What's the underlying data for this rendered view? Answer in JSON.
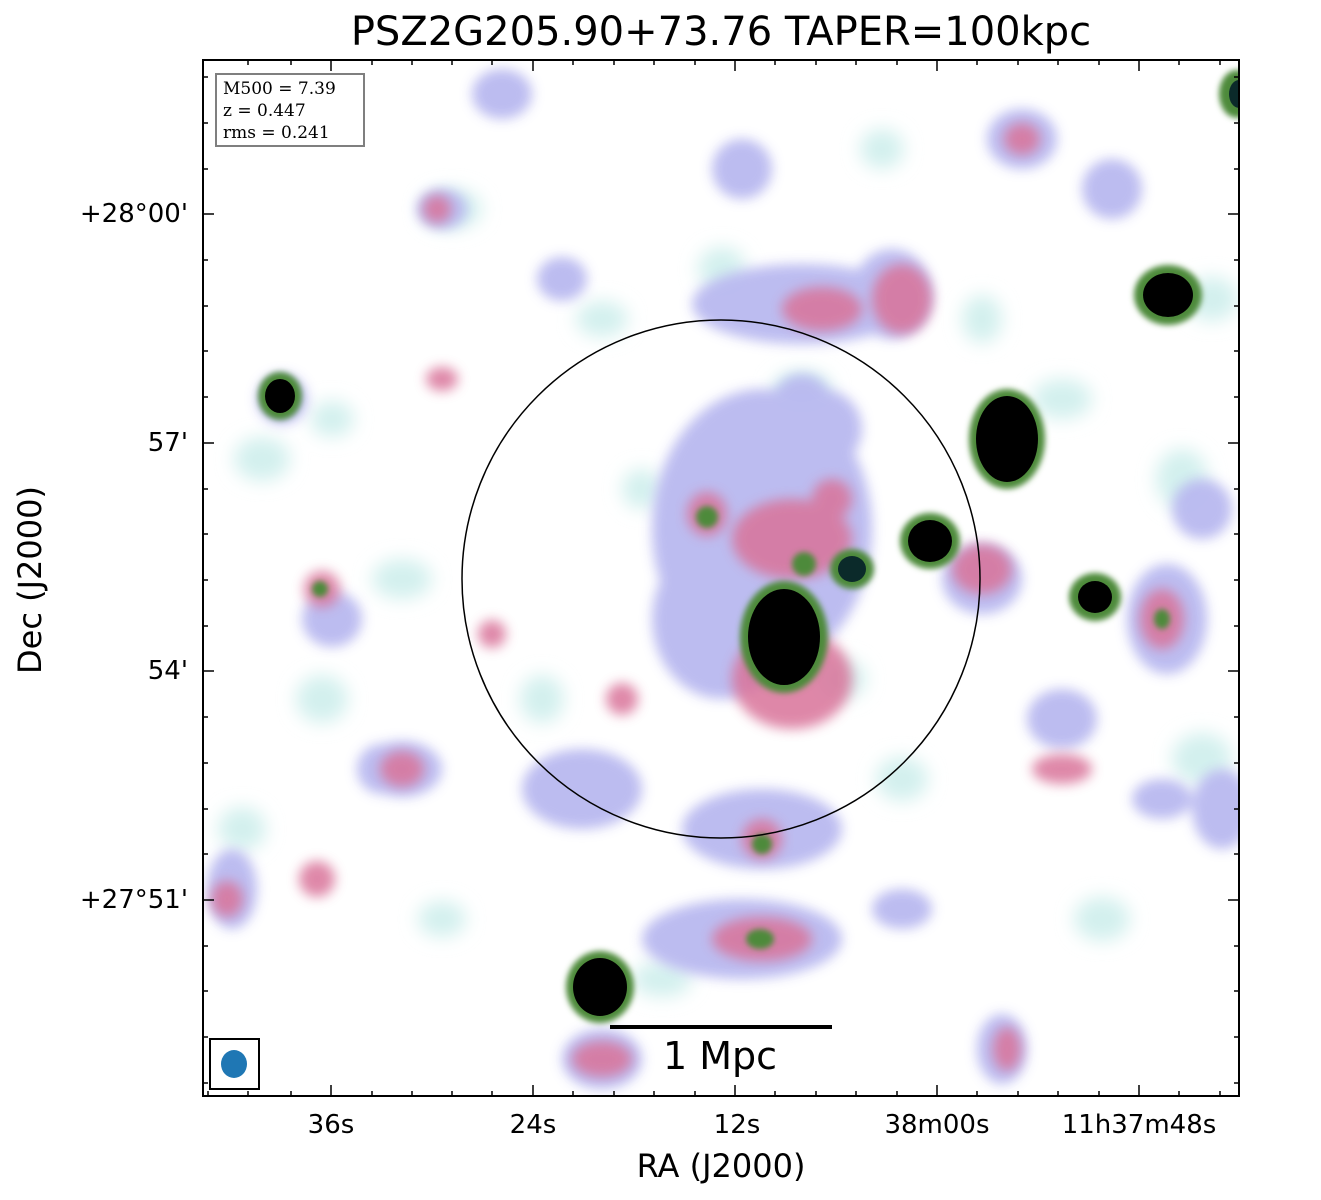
{
  "title": "PSZ2G205.90+73.76 TAPER=100kpc",
  "axes": {
    "xlabel": "RA (J2000)",
    "ylabel": "Dec (J2000)",
    "x_ticks": [
      "36s",
      "24s",
      "12s",
      "38m00s",
      "11h37m48s"
    ],
    "y_ticks": [
      "+28°00'",
      "57'",
      "54'",
      "+27°51'"
    ]
  },
  "info": {
    "mass": "M500 = 7.39",
    "redshift": "z = 0.447",
    "rms": "rms = 0.241"
  },
  "scalebar": {
    "label": "1 Mpc"
  },
  "colors": {
    "cmap_low": "#d3f0ee",
    "cmap_mid_blue": "#b9b9f0",
    "cmap_mid_pink": "#d9739a",
    "cmap_green": "#4e8a3a",
    "cmap_high": "#000000",
    "beam": "#1f77b4",
    "circle": "#000000"
  }
}
